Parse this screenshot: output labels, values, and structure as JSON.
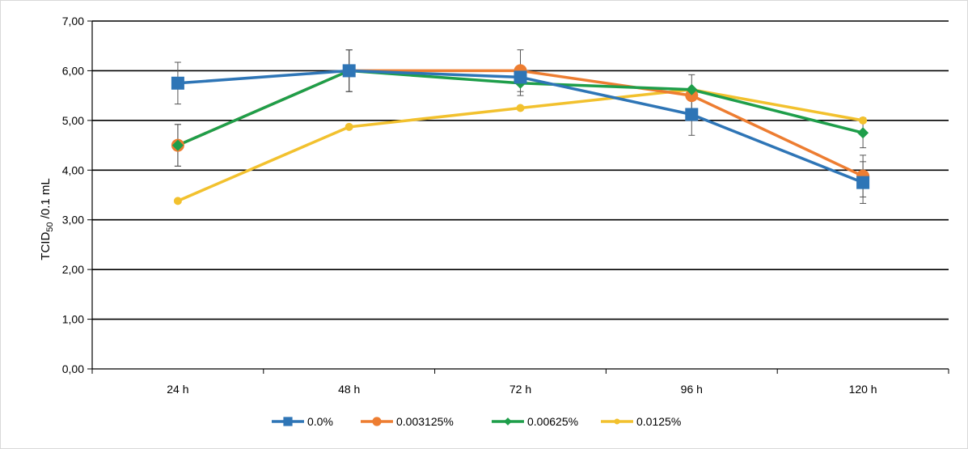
{
  "chart_data": {
    "type": "line",
    "title": "",
    "xlabel": "",
    "ylabel_main": "TCID",
    "ylabel_sub": "50",
    "ylabel_rest": " /0.1 mL",
    "ylim": [
      0,
      7
    ],
    "ytick_step": 1,
    "ytick_labels": [
      "0,00",
      "1,00",
      "2,00",
      "3,00",
      "4,00",
      "5,00",
      "6,00",
      "7,00"
    ],
    "categories": [
      "24 h",
      "48 h",
      "72 h",
      "96 h",
      "120 h"
    ],
    "grid": true,
    "legend_position": "bottom",
    "series": [
      {
        "name": "0.0%",
        "color": "#2e75b6",
        "marker": "square",
        "values": [
          5.75,
          6.0,
          5.87,
          5.12,
          3.75
        ],
        "errors": [
          0.42,
          0.42,
          0.0,
          0.42,
          0.42
        ]
      },
      {
        "name": "0.003125%",
        "color": "#ed7d31",
        "marker": "circle",
        "values": [
          4.5,
          6.0,
          6.0,
          5.5,
          3.88
        ],
        "errors": [
          0.42,
          0.42,
          0.42,
          0.42,
          0.42
        ]
      },
      {
        "name": "0.00625%",
        "color": "#1e9e4a",
        "marker": "diamond",
        "values": [
          4.5,
          6.0,
          5.75,
          5.62,
          4.75
        ],
        "errors": [
          0.42,
          0.42,
          0.25,
          0.0,
          0.3
        ]
      },
      {
        "name": "0.0125%",
        "color": "#f2c12e",
        "marker": "circle-small",
        "values": [
          3.38,
          4.87,
          5.25,
          5.62,
          5.0
        ],
        "errors": [
          0,
          0,
          0,
          0,
          0
        ]
      }
    ]
  }
}
